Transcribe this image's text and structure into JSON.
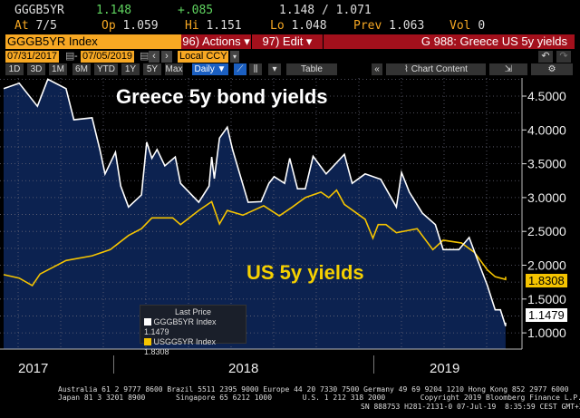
{
  "quote": {
    "ticker": "GGGB5YR",
    "last": "1.148",
    "change": "+.085",
    "bid_ask": "1.148 / 1.071",
    "at_label": "At",
    "at": "7/5",
    "open_label": "Op",
    "open": "1.059",
    "high_label": "Hi",
    "high": "1.151",
    "low_label": "Lo",
    "low": "1.048",
    "prev_label": "Prev",
    "prev": "1.063",
    "vol_label": "Vol",
    "vol": "0"
  },
  "toolbar": {
    "security": "GGGB5YR Index",
    "actions": "96) Actions ▾",
    "edit": "97) Edit ▾",
    "chart_title": "G 988: Greece US 5y yields",
    "start_date": "07/31/2017",
    "end_date": "07/05/2019",
    "currency": "Local CCY",
    "periods": [
      "1D",
      "3D",
      "1M",
      "6M",
      "YTD",
      "1Y",
      "5Y",
      "Max"
    ],
    "frequency": "Daily ▼",
    "table": "Table",
    "chart_content": "Chart Content",
    "collapse": "«"
  },
  "colors": {
    "greece": "#ffffff",
    "us": "#f5c400",
    "fill": "#0c2250",
    "orange": "#f7a823",
    "red": "#a3101c"
  },
  "chart_data": {
    "type": "line",
    "annotations": [
      "Greece 5y bond yields",
      "US 5y yields"
    ],
    "yaxis_ticks": [
      "4.5000",
      "4.0000",
      "3.5000",
      "3.0000",
      "2.5000",
      "2.0000",
      "1.5000",
      "1.0000"
    ],
    "ylim": [
      0.75,
      4.77
    ],
    "xaxis_ticks": [
      "2017",
      "2018",
      "2019"
    ],
    "legend": {
      "title": "Last Price",
      "entries": [
        "GGGB5YR Index 1.1479",
        "USGG5YR Index 1.8308"
      ]
    },
    "last_values": {
      "greece": "1.1479",
      "us": "1.8308"
    },
    "series": [
      {
        "name": "GGGB5YR Index",
        "t": [
          2017.58,
          2017.64,
          2017.71,
          2017.75,
          2017.82,
          2017.85,
          2017.92,
          2017.95,
          2017.97,
          2018.01,
          2018.03,
          2018.06,
          2018.11,
          2018.13,
          2018.15,
          2018.17,
          2018.2,
          2018.24,
          2018.26,
          2018.33,
          2018.37,
          2018.38,
          2018.39,
          2018.41,
          2018.44,
          2018.46,
          2018.52,
          2018.57,
          2018.6,
          2018.62,
          2018.66,
          2018.68,
          2018.71,
          2018.74,
          2018.77,
          2018.82,
          2018.89,
          2018.92,
          2018.97,
          2019.03,
          2019.09,
          2019.11,
          2019.14,
          2019.19,
          2019.24,
          2019.27,
          2019.33,
          2019.37,
          2019.4,
          2019.44,
          2019.47,
          2019.49,
          2019.51,
          2019.51
        ],
        "values": [
          4.61,
          4.69,
          4.35,
          4.75,
          4.61,
          4.15,
          4.18,
          3.71,
          3.35,
          3.67,
          3.17,
          2.86,
          3.04,
          3.82,
          3.58,
          3.71,
          3.47,
          3.6,
          3.21,
          2.93,
          3.17,
          3.6,
          3.28,
          3.88,
          4.04,
          3.71,
          2.93,
          2.94,
          3.21,
          3.31,
          3.21,
          3.58,
          3.13,
          3.13,
          3.61,
          3.35,
          3.64,
          3.21,
          3.35,
          3.27,
          2.86,
          3.37,
          3.08,
          2.77,
          2.6,
          2.23,
          2.23,
          2.41,
          2.1,
          1.7,
          1.34,
          1.34,
          1.1,
          1.15
        ]
      },
      {
        "name": "USGG5YR Index",
        "t": [
          2017.58,
          2017.64,
          2017.69,
          2017.72,
          2017.82,
          2017.92,
          2017.99,
          2018.06,
          2018.11,
          2018.15,
          2018.23,
          2018.26,
          2018.33,
          2018.38,
          2018.41,
          2018.44,
          2018.5,
          2018.58,
          2018.64,
          2018.69,
          2018.74,
          2018.8,
          2018.83,
          2018.86,
          2018.89,
          2018.97,
          2019.0,
          2019.02,
          2019.05,
          2019.09,
          2019.17,
          2019.23,
          2019.27,
          2019.34,
          2019.39,
          2019.44,
          2019.47,
          2019.51,
          2019.51
        ],
        "values": [
          1.86,
          1.81,
          1.7,
          1.87,
          2.07,
          2.14,
          2.23,
          2.44,
          2.54,
          2.7,
          2.7,
          2.6,
          2.81,
          2.94,
          2.61,
          2.81,
          2.74,
          2.88,
          2.73,
          2.86,
          3.0,
          3.08,
          3.0,
          3.11,
          2.9,
          2.68,
          2.4,
          2.6,
          2.6,
          2.48,
          2.54,
          2.23,
          2.37,
          2.33,
          2.19,
          1.93,
          1.83,
          1.79,
          1.83
        ]
      }
    ]
  },
  "footer": {
    "line1": "Australia 61 2 9777 8600 Brazil 5511 2395 9000 Europe 44 20 7330 7500 Germany 49 69 9204 1210 Hong Kong 852 2977 6000",
    "line2": "Japan 81 3 3201 8900       Singapore 65 6212 1000       U.S. 1 212 318 2000        Copyright 2019 Bloomberg Finance L.P.",
    "line3": "SN 888753 H281-2131-0 07-Jul-19  8:35:59 CEST GMT+2:00"
  }
}
